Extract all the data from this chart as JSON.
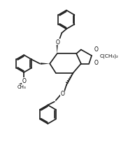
{
  "bg_color": "#ffffff",
  "line_color": "#1a1a1a",
  "line_width": 1.2,
  "font_size": 5.5,
  "figsize": [
    1.73,
    2.03
  ],
  "dpi": 100,
  "xlim": [
    0,
    173
  ],
  "ylim": [
    0,
    203
  ]
}
